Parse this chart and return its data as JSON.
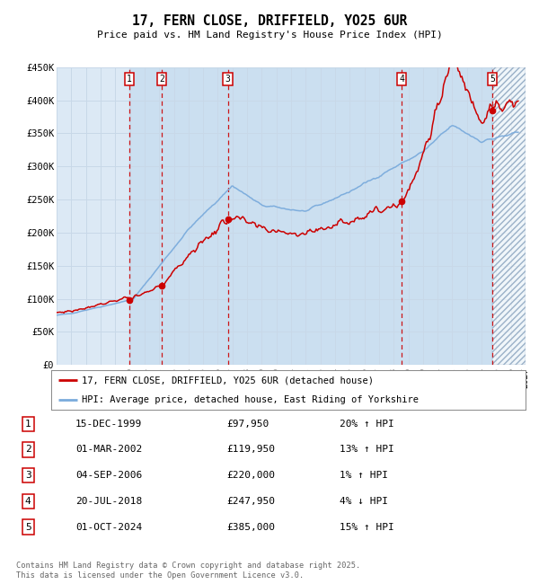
{
  "title": "17, FERN CLOSE, DRIFFIELD, YO25 6UR",
  "subtitle": "Price paid vs. HM Land Registry's House Price Index (HPI)",
  "ylim": [
    0,
    450000
  ],
  "xlim_start": 1995.0,
  "xlim_end": 2027.0,
  "yticks": [
    0,
    50000,
    100000,
    150000,
    200000,
    250000,
    300000,
    350000,
    400000,
    450000
  ],
  "ytick_labels": [
    "£0",
    "£50K",
    "£100K",
    "£150K",
    "£200K",
    "£250K",
    "£300K",
    "£350K",
    "£400K",
    "£450K"
  ],
  "background_color": "#ffffff",
  "plot_bg_color": "#dce9f5",
  "grid_color": "#c8d8e8",
  "sale_dates_x": [
    1999.96,
    2002.17,
    2006.68,
    2018.55,
    2024.75
  ],
  "sale_prices": [
    97950,
    119950,
    220000,
    247950,
    385000
  ],
  "sale_labels": [
    "1",
    "2",
    "3",
    "4",
    "5"
  ],
  "vline_color": "#cc0000",
  "marker_color": "#cc0000",
  "hpi_line_color": "#7aabdc",
  "price_line_color": "#cc0000",
  "legend_label_price": "17, FERN CLOSE, DRIFFIELD, YO25 6UR (detached house)",
  "legend_label_hpi": "HPI: Average price, detached house, East Riding of Yorkshire",
  "table_entries": [
    {
      "num": "1",
      "date": "15-DEC-1999",
      "price": "£97,950",
      "hpi": "20% ↑ HPI"
    },
    {
      "num": "2",
      "date": "01-MAR-2002",
      "price": "£119,950",
      "hpi": "13% ↑ HPI"
    },
    {
      "num": "3",
      "date": "04-SEP-2006",
      "price": "£220,000",
      "hpi": "1% ↑ HPI"
    },
    {
      "num": "4",
      "date": "20-JUL-2018",
      "price": "£247,950",
      "hpi": "4% ↓ HPI"
    },
    {
      "num": "5",
      "date": "01-OCT-2024",
      "price": "£385,000",
      "hpi": "15% ↑ HPI"
    }
  ],
  "footnote": "Contains HM Land Registry data © Crown copyright and database right 2025.\nThis data is licensed under the Open Government Licence v3.0.",
  "hatch_region_start": 2024.75,
  "hatch_region_end": 2027.0
}
